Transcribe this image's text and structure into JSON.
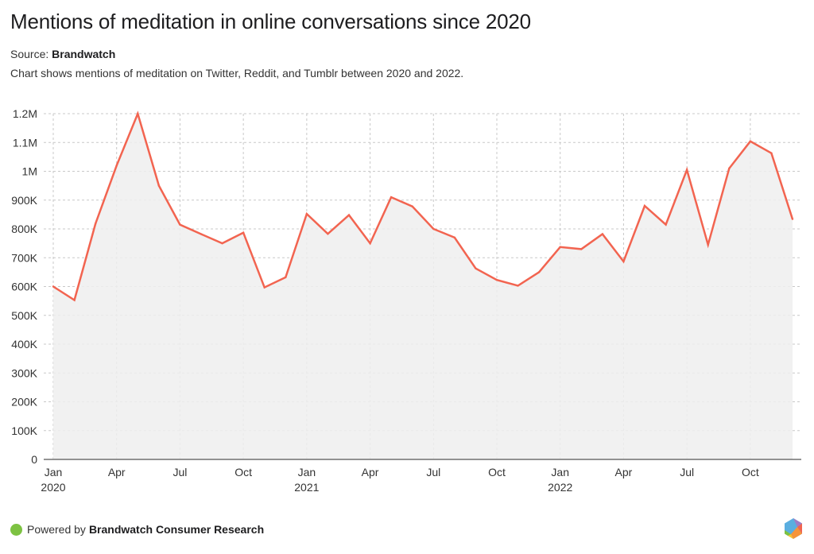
{
  "header": {
    "title": "Mentions of meditation in online conversations since 2020",
    "source_label": "Source:",
    "source_name": "Brandwatch",
    "description": "Chart shows mentions of meditation on Twitter, Reddit, and Tumblr between 2020 and 2022."
  },
  "footer": {
    "powered_label": "Powered by",
    "powered_name": "Brandwatch Consumer Research",
    "logo_icon": "brandwatch-hexagon-logo-icon"
  },
  "colors": {
    "line": "#f26450",
    "area": "#efefef",
    "grid": "#c8c8c8",
    "axis": "#555555",
    "dot": "#7dc242"
  },
  "chart_data": {
    "type": "area",
    "title": "Mentions of meditation in online conversations since 2020",
    "xlabel": "",
    "ylabel": "",
    "ylim": [
      0,
      1200000
    ],
    "grid": true,
    "legend": "none",
    "y_ticks": [
      {
        "value": 0,
        "label": "0"
      },
      {
        "value": 100000,
        "label": "100K"
      },
      {
        "value": 200000,
        "label": "200K"
      },
      {
        "value": 300000,
        "label": "300K"
      },
      {
        "value": 400000,
        "label": "400K"
      },
      {
        "value": 500000,
        "label": "500K"
      },
      {
        "value": 600000,
        "label": "600K"
      },
      {
        "value": 700000,
        "label": "700K"
      },
      {
        "value": 800000,
        "label": "800K"
      },
      {
        "value": 900000,
        "label": "900K"
      },
      {
        "value": 1000000,
        "label": "1M"
      },
      {
        "value": 1100000,
        "label": "1.1M"
      },
      {
        "value": 1200000,
        "label": "1.2M"
      }
    ],
    "x_ticks": [
      {
        "index": 0,
        "label": "Jan",
        "year": "2020"
      },
      {
        "index": 3,
        "label": "Apr",
        "year": ""
      },
      {
        "index": 6,
        "label": "Jul",
        "year": ""
      },
      {
        "index": 9,
        "label": "Oct",
        "year": ""
      },
      {
        "index": 12,
        "label": "Jan",
        "year": "2021"
      },
      {
        "index": 15,
        "label": "Apr",
        "year": ""
      },
      {
        "index": 18,
        "label": "Jul",
        "year": ""
      },
      {
        "index": 21,
        "label": "Oct",
        "year": ""
      },
      {
        "index": 24,
        "label": "Jan",
        "year": "2022"
      },
      {
        "index": 27,
        "label": "Apr",
        "year": ""
      },
      {
        "index": 30,
        "label": "Jul",
        "year": ""
      },
      {
        "index": 33,
        "label": "Oct",
        "year": ""
      }
    ],
    "x": [
      "2020-01",
      "2020-02",
      "2020-03",
      "2020-04",
      "2020-05",
      "2020-06",
      "2020-07",
      "2020-08",
      "2020-09",
      "2020-10",
      "2020-11",
      "2020-12",
      "2021-01",
      "2021-02",
      "2021-03",
      "2021-04",
      "2021-05",
      "2021-06",
      "2021-07",
      "2021-08",
      "2021-09",
      "2021-10",
      "2021-11",
      "2021-12",
      "2022-01",
      "2022-02",
      "2022-03",
      "2022-04",
      "2022-05",
      "2022-06",
      "2022-07",
      "2022-08",
      "2022-09",
      "2022-10",
      "2022-11",
      "2022-12"
    ],
    "series": [
      {
        "name": "Mentions",
        "values": [
          600000,
          553000,
          818000,
          1020000,
          1200000,
          950000,
          815000,
          782000,
          750000,
          787000,
          597000,
          632000,
          852000,
          783000,
          848000,
          750000,
          910000,
          878000,
          800000,
          770000,
          663000,
          623000,
          603000,
          650000,
          737000,
          730000,
          782000,
          687000,
          880000,
          815000,
          1005000,
          745000,
          1010000,
          1104000,
          1063000,
          834000
        ]
      }
    ]
  }
}
